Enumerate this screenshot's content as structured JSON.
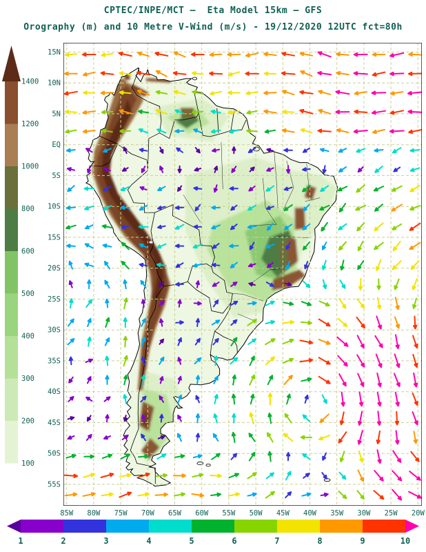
{
  "header": {
    "title_line1": "CPTEC/INPE/MCT —  Eta Model 15km — GFS",
    "title_line2": "Orography (m) and 10 Metre V-Wind (m/s) - 19/12/2020 12UTC fct=80h"
  },
  "chart_data": {
    "type": "map_vector_field",
    "institution": "CPTEC/INPE/MCT",
    "model": "Eta Model 15km",
    "driving_model": "GFS",
    "shading_field": "Orography (m)",
    "vector_field": "10 Metre V-Wind (m/s)",
    "valid_date": "19/12/2020",
    "valid_time": "12UTC",
    "forecast": "fct=80h",
    "region": "South America",
    "map_extent": {
      "lon_min": -85.6,
      "lon_max": -19.3,
      "lat_min": -58.5,
      "lat_max": 16.5
    },
    "lat_tick_labels": [
      "15N",
      "10N",
      "5N",
      "EQ",
      "5S",
      "10S",
      "15S",
      "20S",
      "25S",
      "30S",
      "35S",
      "40S",
      "45S",
      "50S",
      "55S"
    ],
    "lat_tick_values": [
      15,
      10,
      5,
      0,
      -5,
      -10,
      -15,
      -20,
      -25,
      -30,
      -35,
      -40,
      -45,
      -50,
      -55
    ],
    "lon_tick_labels": [
      "85W",
      "80W",
      "75W",
      "70W",
      "65W",
      "60W",
      "55W",
      "50W",
      "45W",
      "40W",
      "35W",
      "30W",
      "25W",
      "20W"
    ],
    "lon_tick_values": [
      -85,
      -80,
      -75,
      -70,
      -65,
      -60,
      -55,
      -50,
      -45,
      -40,
      -35,
      -30,
      -25,
      -20
    ],
    "grid_lines": {
      "style": "dashed",
      "interval_deg": 5
    },
    "elevation_colorbar": {
      "title": "Orography (m)",
      "labels": [
        100,
        200,
        300,
        400,
        500,
        600,
        800,
        1000,
        1200,
        1400
      ],
      "colors": [
        "#ffffff",
        "#e4f3d4",
        "#cdeab6",
        "#b4e098",
        "#9bd47e",
        "#82c465",
        "#4d7d44",
        "#6b6f3a",
        "#a87e52",
        "#8a4f2e",
        "#6e3a22"
      ],
      "arrow_color": "#5c2c18"
    },
    "wind_colorbar": {
      "title": "10 Metre V-Wind (m/s)",
      "labels": [
        1,
        2,
        3,
        4,
        5,
        6,
        7,
        8,
        9,
        10
      ],
      "colors": [
        "#5a00a0",
        "#8800cc",
        "#3333dd",
        "#00aaee",
        "#00ddcc",
        "#00b22d",
        "#88d400",
        "#f2e400",
        "#ff9900",
        "#ff3300",
        "#ff00aa"
      ]
    },
    "arrow_grid": {
      "lon_step_deg": 3.35,
      "lat_step_deg": 3.1
    },
    "wind_field_summary": [
      "Strong easterly trade winds (8-11 m/s, orange/red/magenta arrows) north of the equator over the Caribbean and tropical North Atlantic, pointing west to northwest",
      "Weak variable winds (1-3 m/s, purple/blue/cyan arrows) over the Amazon basin and interior Brazil",
      "Southeast trades (4-6 m/s, green/cyan arrows) over the tropical South Atlantic east of Brazil, pointing west-southwest",
      "Southward flow (5-7 m/s, yellow/green arrows) along the eastern map edge around 25S-35S",
      "Closed cyclonic vortex over the South Atlantic near 38W 41S with arrows rotating clockwise",
      "Northward coastal jet (5-6 m/s, yellow/orange arrows) along the Chile-Peru coast",
      "Strong westerlies (8-10 m/s, orange/red arrows) south of 48S"
    ],
    "colors": {
      "text": "#0f5f53",
      "grid": "#c9d093",
      "land_base": "#eef7e2",
      "frame": "#000000"
    }
  }
}
